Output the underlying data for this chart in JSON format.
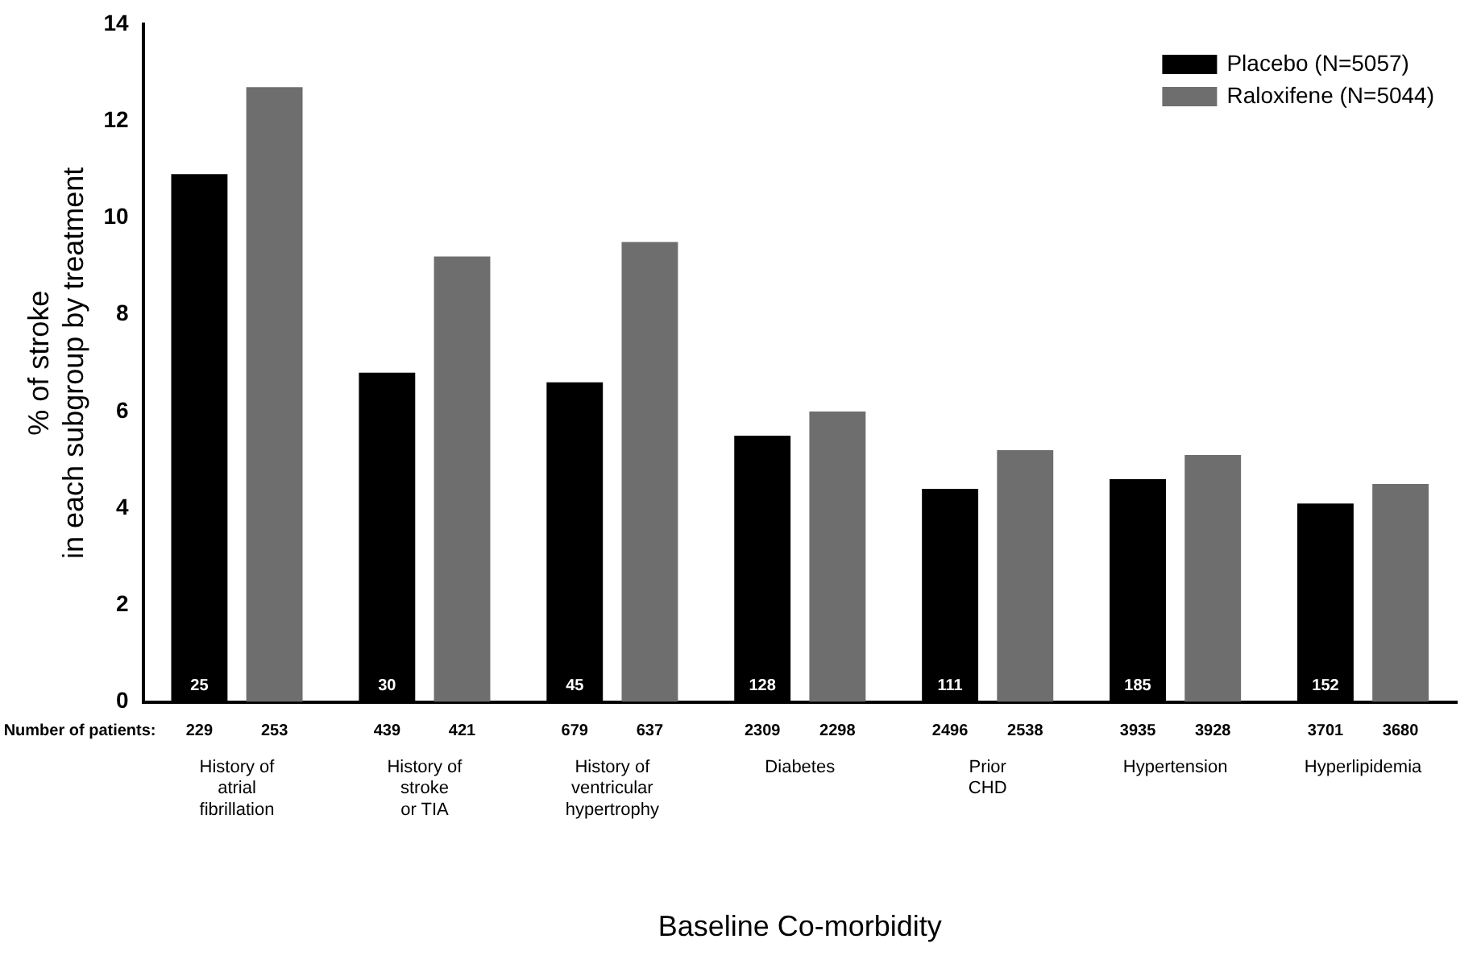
{
  "chart_data": {
    "type": "bar",
    "categories": [
      "History of\natrial\nfibrillation",
      "History of\nstroke\nor TIA",
      "History of\nventricular\nhypertrophy",
      "Diabetes",
      "Prior\nCHD",
      "Hypertension",
      "Hyperlipidemia"
    ],
    "series": [
      {
        "name": "Placebo (N=5057)",
        "color": "#000000",
        "values": [
          10.9,
          6.8,
          6.6,
          5.5,
          4.4,
          4.6,
          4.1
        ]
      },
      {
        "name": "Raloxifene (N=5044)",
        "color": "#6e6e6e",
        "values": [
          12.7,
          9.2,
          9.5,
          6.0,
          5.2,
          5.1,
          4.5
        ]
      }
    ],
    "ylabel": "% of stroke\nin each subgroup by treatment",
    "xlabel": "Baseline Co-morbidity",
    "ylim": [
      0,
      14
    ],
    "yticks": [
      0,
      2,
      4,
      6,
      8,
      10,
      12,
      14
    ],
    "annotations": [
      "Number of patients:",
      "229",
      "253",
      "439",
      "421",
      "679",
      "637",
      "2309",
      "2298",
      "2496",
      "2538",
      "3935",
      "3928",
      "3701",
      "3680",
      "25",
      "30",
      "45",
      "128",
      "111",
      "185",
      "152"
    ],
    "grid": false,
    "legend": "top right"
  }
}
